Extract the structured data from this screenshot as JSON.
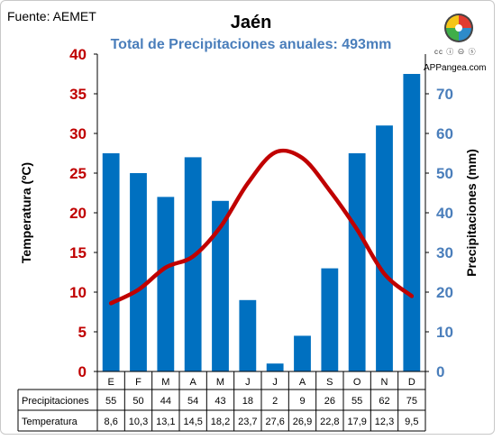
{
  "source": "Fuente: AEMET",
  "brand": "APPangea.com",
  "cc_label": "cc",
  "chart_data": {
    "type": "bar",
    "title": "Jaén",
    "subtitle": "Total de Precipitaciones anuales: 493mm",
    "categories": [
      "E",
      "F",
      "M",
      "A",
      "M",
      "J",
      "J",
      "A",
      "S",
      "O",
      "N",
      "D"
    ],
    "series": [
      {
        "name": "Precipitaciones",
        "chart": "bar",
        "axis": "right",
        "color": "#0070c0",
        "values": [
          55,
          50,
          44,
          54,
          43,
          18,
          2,
          9,
          26,
          55,
          62,
          75
        ]
      },
      {
        "name": "Temperatura",
        "chart": "line",
        "axis": "left",
        "color": "#c00000",
        "values": [
          8.6,
          10.3,
          13.1,
          14.5,
          18.2,
          23.7,
          27.6,
          26.9,
          22.8,
          17.9,
          12.3,
          9.5
        ]
      }
    ],
    "table_labels": {
      "precip": [
        "55",
        "50",
        "44",
        "54",
        "43",
        "18",
        "2",
        "9",
        "26",
        "55",
        "62",
        "75"
      ],
      "temp": [
        "8,6",
        "10,3",
        "13,1",
        "14,5",
        "18,2",
        "23,7",
        "27,6",
        "26,9",
        "22,8",
        "17,9",
        "12,3",
        "9,5"
      ]
    },
    "ylabel_left": "Temperatura (ºC)",
    "ylabel_right": "Precipitaciones (mm)",
    "ylim_left": [
      0,
      40
    ],
    "ylim_right": [
      0,
      80
    ],
    "yticks_left": [
      0,
      5,
      10,
      15,
      20,
      25,
      30,
      35,
      40
    ],
    "yticks_right": [
      0,
      10,
      20,
      30,
      40,
      50,
      60,
      70
    ],
    "grid": false,
    "legend": "table-bottom"
  }
}
